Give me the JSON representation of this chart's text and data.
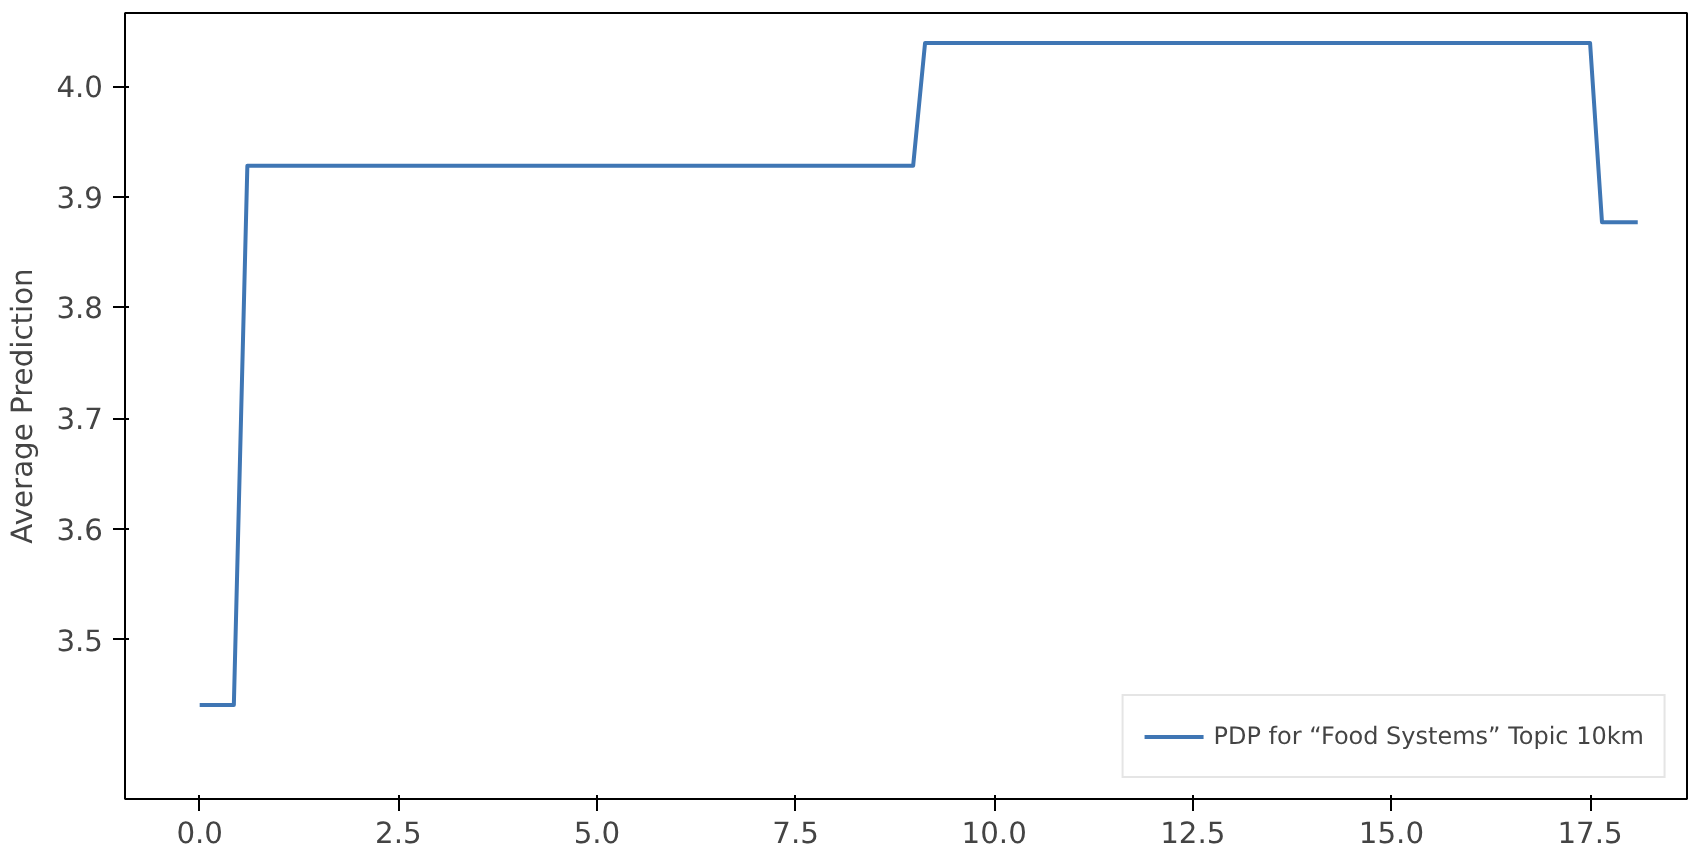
{
  "chart_data": {
    "type": "line",
    "ylabel": "Average Prediction",
    "x": [
      0.0,
      0.43,
      0.6,
      8.98,
      9.13,
      17.5,
      17.65,
      18.1
    ],
    "series": [
      {
        "name": "PDP for “Food Systems” Topic 10km",
        "color": "#3f76b4",
        "values": [
          3.441,
          3.441,
          3.928,
          3.928,
          4.039,
          4.039,
          3.877,
          3.877
        ]
      }
    ],
    "xlim": [
      -0.94,
      18.72
    ],
    "ylim": [
      3.356,
      4.066
    ],
    "xticks": [
      {
        "value": 0,
        "label": "0.0"
      },
      2.5,
      {
        "value": 5,
        "label": "5.0"
      },
      7.5,
      {
        "value": 10,
        "label": "10.0"
      },
      12.5,
      {
        "value": 15,
        "label": "15.0"
      },
      17.5
    ],
    "yticks": [
      3.5,
      3.6,
      3.7,
      3.8,
      3.9,
      {
        "value": 4,
        "label": "4.0"
      }
    ],
    "grid": false,
    "legend": "bottom right",
    "line_style": "solid"
  }
}
